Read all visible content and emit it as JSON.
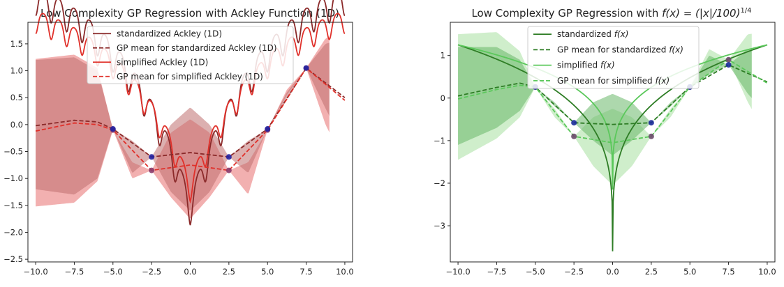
{
  "chart_data": [
    {
      "type": "line",
      "title": "Low Complexity GP Regression with Ackley Function (1D)",
      "xlim": [
        -10.5,
        10.5
      ],
      "ylim": [
        -2.55,
        1.9
      ],
      "xticks": [
        -10,
        -7.5,
        -5,
        -2.5,
        0,
        2.5,
        5,
        7.5,
        10
      ],
      "xtick_labels": [
        "−10.0",
        "−7.5",
        "−5.0",
        "−2.5",
        "0.0",
        "2.5",
        "5.0",
        "7.5",
        "10.0"
      ],
      "yticks": [
        -2.5,
        -2.0,
        -1.5,
        -1.0,
        -0.5,
        0.0,
        0.5,
        1.0,
        1.5
      ],
      "ytick_labels": [
        "−2.5",
        "−2.0",
        "−1.5",
        "−1.0",
        "−0.5",
        "0.0",
        "0.5",
        "1.0",
        "1.5"
      ],
      "legend_position": "top-center",
      "legend": [
        {
          "label": "standardized Ackley (1D)",
          "color": "#8b2a2a",
          "dash": "solid"
        },
        {
          "label": "GP mean for standardized Ackley (1D)",
          "color": "#8b2a2a",
          "dash": "dashed"
        },
        {
          "label": "simplified Ackley (1D)",
          "color": "#e0302a",
          "dash": "solid"
        },
        {
          "label": "GP mean for simplified Ackley (1D)",
          "color": "#e0302a",
          "dash": "dashed"
        }
      ],
      "function_a": {
        "type": "ackley",
        "scale": 0.85,
        "offset": 1.25,
        "color": "#8b2a2a"
      },
      "function_b": {
        "type": "ackley",
        "scale": 0.67,
        "offset": 1.0,
        "color": "#e0302a"
      },
      "observations_a": {
        "x": [
          -5,
          -2.5,
          2.5,
          5,
          7.5
        ],
        "y": [
          -0.08,
          -0.6,
          -0.6,
          -0.08,
          1.05
        ],
        "color": "#2020a0"
      },
      "observations_b": {
        "x": [
          -5,
          -2.5,
          2.5,
          5,
          7.5
        ],
        "y": [
          -0.1,
          -0.85,
          -0.85,
          -0.1,
          1.05
        ],
        "color": "#8a3a6a"
      },
      "gp_mean_a": {
        "x": [
          -10,
          -7.5,
          -6,
          -5,
          -2.5,
          0,
          2.5,
          5,
          7.5,
          10
        ],
        "y": [
          -0.02,
          0.08,
          0.05,
          -0.08,
          -0.6,
          -0.52,
          -0.6,
          -0.08,
          1.05,
          0.5
        ]
      },
      "gp_mean_b": {
        "x": [
          -10,
          -7.5,
          -6,
          -5,
          -2.5,
          0,
          2.5,
          5,
          7.5,
          10
        ],
        "y": [
          -0.12,
          0.03,
          0.0,
          -0.1,
          -0.85,
          -0.75,
          -0.85,
          -0.1,
          1.05,
          0.45
        ]
      },
      "band_a": {
        "x": [
          -10,
          -7.5,
          -6,
          -5,
          -3.75,
          -2.5,
          -1.25,
          0,
          1.25,
          2.5,
          3.75,
          5,
          6.25,
          7.5,
          8.75,
          10
        ],
        "lower": [
          -1.2,
          -1.3,
          -1.0,
          -0.08,
          -0.9,
          -0.6,
          -1.25,
          -1.6,
          -1.25,
          -0.6,
          -0.9,
          -0.08,
          0.5,
          1.05,
          0.3,
          -0.4
        ],
        "upper": [
          1.2,
          1.25,
          1.0,
          -0.08,
          -0.3,
          -0.6,
          0.0,
          0.32,
          0.0,
          -0.6,
          -0.3,
          -0.08,
          0.6,
          1.05,
          1.5,
          1.6
        ],
        "color": "#c07070"
      },
      "band_b": {
        "x": [
          -10,
          -7.5,
          -6,
          -5,
          -3.75,
          -2.5,
          -1.25,
          0,
          1.25,
          2.5,
          3.75,
          5,
          6.25,
          7.5,
          8.75,
          10
        ],
        "lower": [
          -1.52,
          -1.45,
          -1.05,
          -0.1,
          -1.0,
          -0.85,
          -1.35,
          -1.75,
          -1.35,
          -0.85,
          -1.3,
          -0.1,
          0.55,
          1.05,
          0.0,
          -0.72
        ],
        "upper": [
          1.22,
          1.3,
          1.05,
          -0.1,
          -0.7,
          -0.85,
          -0.15,
          0.1,
          -0.15,
          -0.85,
          -0.7,
          -0.1,
          0.65,
          1.05,
          1.6,
          1.72
        ],
        "color": "#e87070"
      }
    },
    {
      "type": "line",
      "title": "Low Complexity GP Regression with ",
      "title_math": "f(x) = (|x|/100)",
      "title_sup": "1/4",
      "xlim": [
        -10.5,
        10.5
      ],
      "ylim": [
        -3.85,
        1.78
      ],
      "xticks": [
        -10,
        -7.5,
        -5,
        -2.5,
        0,
        2.5,
        5,
        7.5,
        10
      ],
      "xtick_labels": [
        "−10.0",
        "−7.5",
        "−5.0",
        "−2.5",
        "0.0",
        "2.5",
        "5.0",
        "7.5",
        "10.0"
      ],
      "yticks": [
        -3,
        -2,
        -1,
        0,
        1
      ],
      "ytick_labels": [
        "−3",
        "−2",
        "−1",
        "0",
        "1"
      ],
      "legend_position": "top-center",
      "legend": [
        {
          "label": "standardized ",
          "math": "f(x)",
          "color": "#2e7d25",
          "dash": "solid"
        },
        {
          "label": "GP mean for standardized ",
          "math": "f(x)",
          "color": "#2e7d25",
          "dash": "dashed"
        },
        {
          "label": "simplified ",
          "math": "f(x)",
          "color": "#5bc85b",
          "dash": "solid"
        },
        {
          "label": "GP mean for simplified ",
          "math": "f(x)",
          "color": "#5bc85b",
          "dash": "dashed"
        }
      ],
      "function_a": {
        "type": "root4",
        "scale": 3.6,
        "offset": -3.6,
        "color": "#2e7d25"
      },
      "function_b": {
        "type": "root4",
        "scale": 2.65,
        "offset": -2.15,
        "color": "#5bc85b"
      },
      "observations_a": {
        "x": [
          -5,
          -2.5,
          2.5,
          5,
          7.5
        ],
        "y": [
          0.26,
          -0.58,
          -0.58,
          0.26,
          0.78
        ],
        "color": "#1a2a9a"
      },
      "observations_b": {
        "x": [
          -5,
          -2.5,
          2.5,
          5,
          7.5
        ],
        "y": [
          0.26,
          -0.9,
          -0.9,
          0.26,
          0.9
        ],
        "color": "#6a4a6a"
      },
      "gp_mean_a": {
        "x": [
          -10,
          -7.5,
          -6,
          -5,
          -2.5,
          0,
          2.5,
          5,
          7.5,
          10
        ],
        "y": [
          0.05,
          0.25,
          0.35,
          0.26,
          -0.58,
          -0.62,
          -0.58,
          0.26,
          0.78,
          0.38
        ]
      },
      "gp_mean_b": {
        "x": [
          -10,
          -7.5,
          -6,
          -5,
          -2.5,
          0,
          2.5,
          5,
          7.5,
          10
        ],
        "y": [
          -0.02,
          0.2,
          0.3,
          0.26,
          -0.9,
          -1.05,
          -0.9,
          0.26,
          0.9,
          0.35
        ]
      },
      "band_a": {
        "x": [
          -10,
          -7.5,
          -6,
          -5,
          -3.75,
          -2.5,
          -1.25,
          0,
          1.25,
          2.5,
          3.75,
          5,
          6.25,
          7.5,
          8.75,
          10
        ],
        "lower": [
          -1.1,
          -0.7,
          -0.3,
          0.26,
          -0.2,
          -0.58,
          -1.0,
          -1.35,
          -1.0,
          -0.58,
          -0.2,
          0.26,
          0.55,
          0.78,
          0.1,
          -0.4
        ],
        "upper": [
          1.2,
          1.2,
          0.9,
          0.26,
          -0.1,
          -0.58,
          -0.1,
          0.1,
          -0.1,
          -0.58,
          -0.1,
          0.26,
          1.0,
          0.78,
          1.15,
          1.2
        ],
        "color": "#6ab86a"
      },
      "band_b": {
        "x": [
          -10,
          -7.5,
          -6,
          -5,
          -3.75,
          -2.5,
          -1.25,
          0,
          1.25,
          2.5,
          3.75,
          5,
          6.25,
          7.5,
          8.75,
          10
        ],
        "lower": [
          -1.45,
          -0.95,
          -0.45,
          0.26,
          -0.45,
          -0.9,
          -1.6,
          -2.05,
          -1.6,
          -0.9,
          -0.45,
          0.26,
          0.6,
          0.9,
          -0.1,
          -0.9
        ],
        "upper": [
          1.5,
          1.55,
          1.1,
          0.26,
          -0.25,
          -0.9,
          -0.45,
          -0.25,
          -0.45,
          -0.9,
          -0.25,
          0.26,
          1.15,
          0.9,
          1.5,
          1.55
        ],
        "color": "#a8e0a0"
      }
    }
  ]
}
